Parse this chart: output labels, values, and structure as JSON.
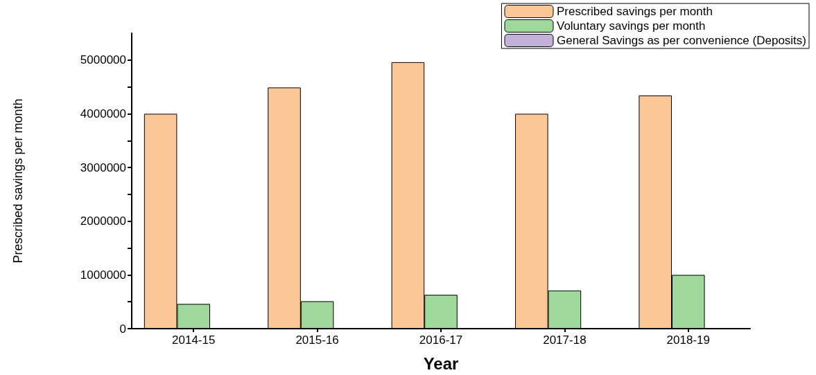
{
  "chart_data": {
    "type": "bar",
    "xlabel": "Year",
    "ylabel": "Prescribed savings per month",
    "categories": [
      "2014-15",
      "2015-16",
      "2016-17",
      "2017-18",
      "2018-19"
    ],
    "series": [
      {
        "name": "Prescribed savings per month",
        "color": "#fbc797",
        "values": [
          4000000,
          4490000,
          4960000,
          4000000,
          4340000
        ]
      },
      {
        "name": "Voluntary savings per month",
        "color": "#9ed89c",
        "values": [
          460000,
          510000,
          630000,
          710000,
          1000000
        ]
      },
      {
        "name": "General Savings as per convenience (Deposits)",
        "color": "#c3b2d8",
        "values": [
          null,
          null,
          null,
          null,
          null
        ]
      }
    ],
    "ylim": [
      0,
      5500000
    ],
    "yticks": [
      0,
      {
        "value": 500000,
        "label": null
      },
      1000000,
      {
        "value": 1500000,
        "label": null
      },
      2000000,
      {
        "value": 2500000,
        "label": null
      },
      3000000,
      {
        "value": 3500000,
        "label": null
      },
      4000000,
      {
        "value": 4500000,
        "label": null
      },
      5000000
    ],
    "grid": false,
    "legend": "top right"
  }
}
